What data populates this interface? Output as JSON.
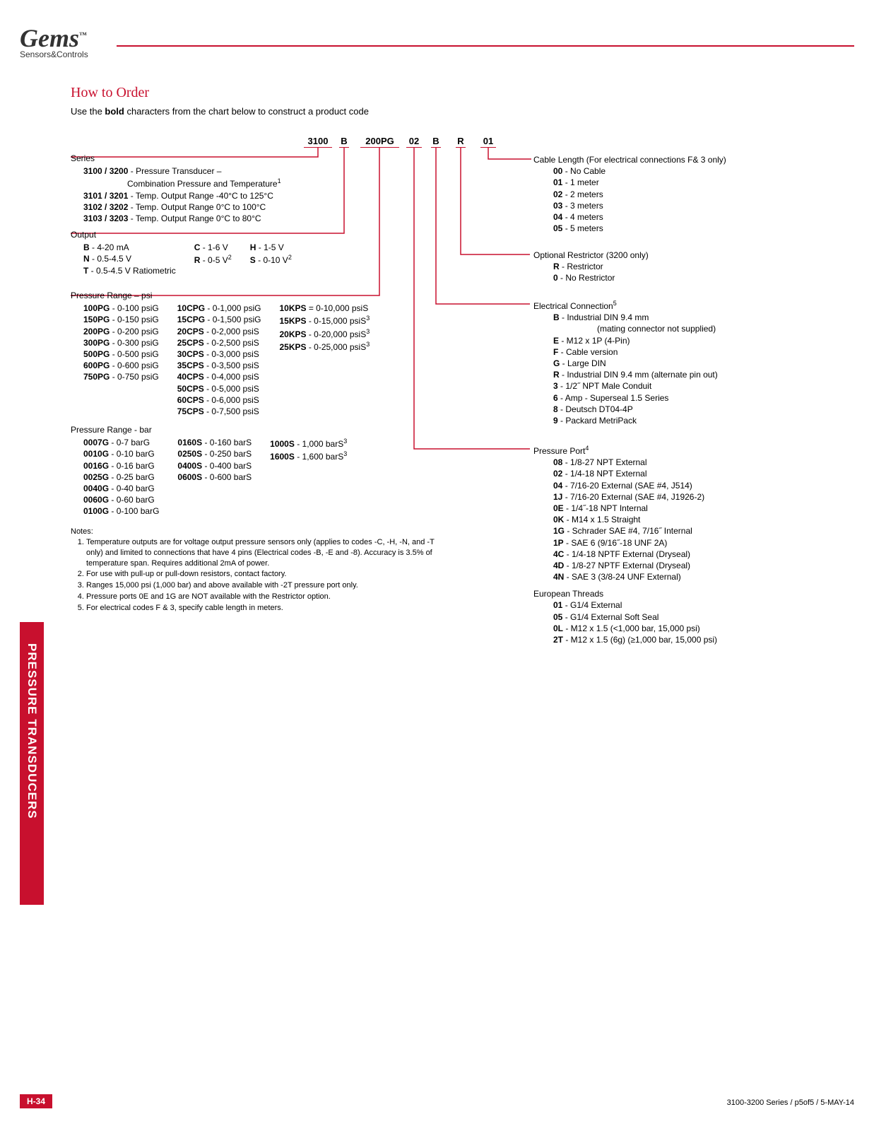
{
  "brand": {
    "name": "Gems",
    "tm": "™",
    "sub": "Sensors&Controls"
  },
  "title": "How to Order",
  "subtitle": "Use the bold characters from the chart below to construct a product code",
  "productCode": [
    "3100",
    "B",
    "200PG",
    "02",
    "B",
    "R",
    "01"
  ],
  "series": {
    "label": "Series",
    "items": [
      {
        "code": "3100 / 3200",
        "desc": " - Pressure Transducer –"
      },
      {
        "code": "",
        "desc": "Combination Pressure and Temperature",
        "sup": "1",
        "indent": true
      },
      {
        "code": "3101 / 3201",
        "desc": " - Temp. Output Range -40°C to 125°C"
      },
      {
        "code": "3102 / 3202",
        "desc": " - Temp. Output Range 0°C to 100°C"
      },
      {
        "code": "3103 / 3203",
        "desc": " - Temp. Output Range 0°C to 80°C"
      }
    ]
  },
  "output": {
    "label": "Output",
    "cols": [
      [
        {
          "code": "B",
          "desc": " - 4-20 mA"
        },
        {
          "code": "N",
          "desc": " - 0.5-4.5 V"
        },
        {
          "code": "T",
          "desc": " - 0.5-4.5 V Ratiometric"
        }
      ],
      [
        {
          "code": "C",
          "desc": " - 1-6 V"
        },
        {
          "code": "R",
          "desc": " - 0-5 V",
          "sup": "2"
        }
      ],
      [
        {
          "code": "H",
          "desc": " - 1-5 V"
        },
        {
          "code": "S",
          "desc": " - 0-10 V",
          "sup": "2"
        }
      ]
    ]
  },
  "psi": {
    "label": "Pressure Range – psi",
    "cols": [
      [
        {
          "code": "100PG",
          "desc": " - 0-100 psiG"
        },
        {
          "code": "150PG",
          "desc": " - 0-150 psiG"
        },
        {
          "code": "200PG",
          "desc": " - 0-200 psiG"
        },
        {
          "code": "300PG",
          "desc": " - 0-300 psiG"
        },
        {
          "code": "500PG",
          "desc": " - 0-500 psiG"
        },
        {
          "code": "600PG",
          "desc": " - 0-600 psiG"
        },
        {
          "code": "750PG",
          "desc": " - 0-750 psiG"
        }
      ],
      [
        {
          "code": "10CPG",
          "desc": " - 0-1,000 psiG"
        },
        {
          "code": "15CPG",
          "desc": " - 0-1,500 psiG"
        },
        {
          "code": "20CPS",
          "desc": " - 0-2,000 psiS"
        },
        {
          "code": "25CPS",
          "desc": " - 0-2,500 psiS"
        },
        {
          "code": "30CPS",
          "desc": " - 0-3,000 psiS"
        },
        {
          "code": "35CPS",
          "desc": " - 0-3,500 psiS"
        },
        {
          "code": "40CPS",
          "desc": " - 0-4,000 psiS"
        },
        {
          "code": "50CPS",
          "desc": " - 0-5,000 psiS"
        },
        {
          "code": "60CPS",
          "desc": " - 0-6,000 psiS"
        },
        {
          "code": "75CPS",
          "desc": " - 0-7,500 psiS"
        }
      ],
      [
        {
          "code": "10KPS",
          "desc": " = 0-10,000 psiS"
        },
        {
          "code": "15KPS",
          "desc": " - 0-15,000 psiS",
          "sup": "3"
        },
        {
          "code": "20KPS",
          "desc": " - 0-20,000 psiS",
          "sup": "3"
        },
        {
          "code": "25KPS",
          "desc": " - 0-25,000 psiS",
          "sup": "3"
        }
      ]
    ]
  },
  "bar": {
    "label": "Pressure Range - bar",
    "cols": [
      [
        {
          "code": "0007G",
          "desc": " - 0-7 barG"
        },
        {
          "code": "0010G",
          "desc": " - 0-10 barG"
        },
        {
          "code": "0016G",
          "desc": " - 0-16 barG"
        },
        {
          "code": "0025G",
          "desc": " - 0-25 barG"
        },
        {
          "code": "0040G",
          "desc": " - 0-40 barG"
        },
        {
          "code": "0060G",
          "desc": " - 0-60 barG"
        },
        {
          "code": "0100G",
          "desc": " - 0-100 barG"
        }
      ],
      [
        {
          "code": "0160S",
          "desc": " - 0-160 barS"
        },
        {
          "code": "0250S",
          "desc": " - 0-250 barS"
        },
        {
          "code": "0400S",
          "desc": " - 0-400 barS"
        },
        {
          "code": "0600S",
          "desc": " - 0-600 barS"
        }
      ],
      [
        {
          "code": "1000S",
          "desc": " - 1,000 barS",
          "sup": "3"
        },
        {
          "code": "1600S",
          "desc": " - 1,600 barS",
          "sup": "3"
        }
      ]
    ]
  },
  "notes": {
    "label": "Notes:",
    "items": [
      "Temperature outputs are for voltage output pressure sensors only (applies to codes -C, -H, -N, and -T only) and limited to connections that have 4 pins (Electrical codes -B, -E and -8). Accuracy is 3.5% of temperature span. Requires additional 2mA of power.",
      "For use with pull-up or pull-down resistors, contact factory.",
      "Ranges 15,000 psi (1,000 bar) and above available with -2T pressure port only.",
      "Pressure ports 0E and 1G are NOT available with the Restrictor option.",
      "For electrical codes F & 3, specify cable length in meters."
    ]
  },
  "cable": {
    "label": "Cable Length (For electrical connections F& 3 only)",
    "items": [
      {
        "code": "00",
        "desc": " - No Cable"
      },
      {
        "code": "01",
        "desc": " - 1 meter"
      },
      {
        "code": "02",
        "desc": " - 2 meters"
      },
      {
        "code": "03",
        "desc": " - 3 meters"
      },
      {
        "code": "04",
        "desc": " - 4 meters"
      },
      {
        "code": "05",
        "desc": " - 5 meters"
      }
    ]
  },
  "restrictor": {
    "label": "Optional Restrictor (3200 only)",
    "items": [
      {
        "code": "R",
        "desc": " - Restrictor"
      },
      {
        "code": "0",
        "desc": " - No Restrictor"
      }
    ]
  },
  "elec": {
    "label": "Electrical Connection",
    "sup": "5",
    "items": [
      {
        "code": "B",
        "desc": " - Industrial DIN 9.4 mm"
      },
      {
        "code": "",
        "desc": "(mating connector not supplied)",
        "indent": true
      },
      {
        "code": "E",
        "desc": " - M12 x 1P (4-Pin)"
      },
      {
        "code": "F",
        "desc": " - Cable version"
      },
      {
        "code": "G",
        "desc": " - Large DIN"
      },
      {
        "code": "R",
        "desc": " - Industrial DIN 9.4 mm (alternate pin out)"
      },
      {
        "code": "3",
        "desc": " - 1/2˝ NPT Male Conduit"
      },
      {
        "code": "6",
        "desc": " - Amp - Superseal 1.5 Series"
      },
      {
        "code": "8",
        "desc": " - Deutsch DT04-4P"
      },
      {
        "code": "9",
        "desc": " - Packard MetriPack"
      }
    ]
  },
  "port": {
    "label": "Pressure Port",
    "sup": "4",
    "items": [
      {
        "code": "08",
        "desc": " - 1/8-27 NPT External"
      },
      {
        "code": "02",
        "desc": " - 1/4-18 NPT External"
      },
      {
        "code": "04",
        "desc": " - 7/16-20 External (SAE #4, J514)"
      },
      {
        "code": "1J",
        "desc": " - 7/16-20 External (SAE #4, J1926-2)"
      },
      {
        "code": "0E",
        "desc": " - 1/4˝-18 NPT Internal"
      },
      {
        "code": "0K",
        "desc": " - M14 x 1.5 Straight"
      },
      {
        "code": "1G",
        "desc": " - Schrader SAE #4, 7/16˝ Internal"
      },
      {
        "code": "1P",
        "desc": " - SAE 6 (9/16˝-18 UNF 2A)"
      },
      {
        "code": "4C",
        "desc": " - 1/4-18 NPTF External (Dryseal)"
      },
      {
        "code": "4D",
        "desc": " - 1/8-27 NPTF External (Dryseal)"
      },
      {
        "code": "4N",
        "desc": " - SAE 3 (3/8-24 UNF External)"
      }
    ],
    "euLabel": "European Threads",
    "eu": [
      {
        "code": "01",
        "desc": " - G1/4 External"
      },
      {
        "code": "05",
        "desc": " - G1/4 External Soft Seal"
      },
      {
        "code": "0L",
        "desc": " - M12 x 1.5 (<1,000 bar, 15,000 psi)"
      },
      {
        "code": "2T",
        "desc": " - M12 x 1.5 (6g) (≥1,000 bar, 15,000 psi)"
      }
    ]
  },
  "sidebarText": "PRESSURE TRANSDUCERS",
  "footerLeft": "H-34",
  "footerRight": "3100-3200 Series / p5of5 / 5-MAY-14",
  "positions": {
    "codeX": [
      430,
      480,
      510,
      575,
      610,
      645,
      680
    ],
    "codeW": [
      40,
      14,
      55,
      22,
      14,
      14,
      22
    ]
  },
  "colors": {
    "accent": "#c8102e"
  }
}
